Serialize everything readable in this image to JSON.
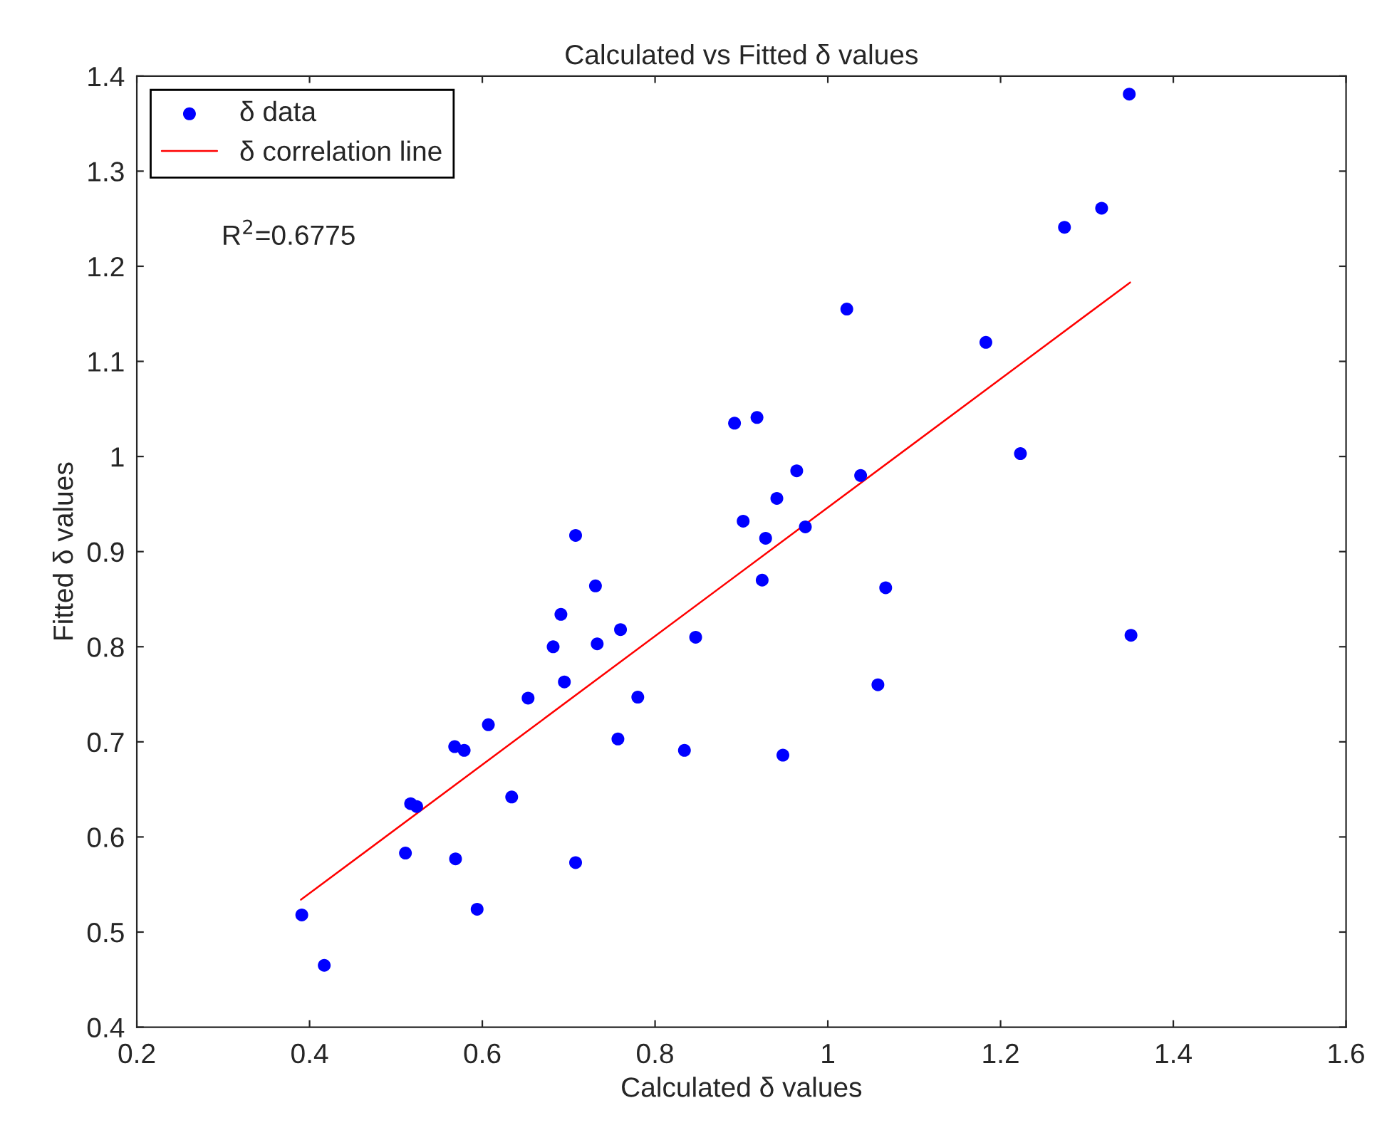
{
  "chart_data": {
    "type": "scatter",
    "title": "Calculated vs Fitted δ values",
    "xlabel": "Calculated δ values",
    "ylabel": "Fitted δ values",
    "annotations": [
      "R$^{2}$=0.6775"
    ],
    "xlim": [
      0.2,
      1.6
    ],
    "xticks": [
      0.2,
      0.4,
      0.6,
      0.8,
      1,
      1.2,
      1.4,
      1.6
    ],
    "ylim": [
      0.4,
      1.4
    ],
    "yticks": [
      0.4,
      0.5,
      0.6,
      0.7,
      0.8,
      0.9,
      1,
      1.1,
      1.2,
      1.3,
      1.4
    ],
    "grid": false,
    "legend": "top left",
    "series": [
      {
        "name": "δ data",
        "marker": "circle",
        "color": "#0000ff",
        "x": [
          0.391,
          0.417,
          0.511,
          0.517,
          0.524,
          0.569,
          0.568,
          0.579,
          0.594,
          0.607,
          0.634,
          0.653,
          0.682,
          0.695,
          0.691,
          0.708,
          0.708,
          0.731,
          0.733,
          0.76,
          0.78,
          0.757,
          0.834,
          0.847,
          0.892,
          0.918,
          0.964,
          0.941,
          0.902,
          0.928,
          0.974,
          0.924,
          0.948,
          1.022,
          1.038,
          1.067,
          1.058,
          1.349,
          1.317,
          1.274,
          1.183,
          1.223,
          1.351
        ],
        "values": [
          0.518,
          0.465,
          0.583,
          0.635,
          0.632,
          0.577,
          0.695,
          0.691,
          0.524,
          0.718,
          0.642,
          0.746,
          0.8,
          0.763,
          0.834,
          0.917,
          0.573,
          0.864,
          0.803,
          0.818,
          0.747,
          0.703,
          0.691,
          0.81,
          1.035,
          1.041,
          0.985,
          0.956,
          0.932,
          0.914,
          0.926,
          0.87,
          0.686,
          1.155,
          0.98,
          0.862,
          0.76,
          1.381,
          1.261,
          1.241,
          1.12,
          1.003,
          0.812
        ]
      },
      {
        "name": "δ correlation line",
        "type": "line",
        "marker": "none",
        "line_style": "solid",
        "color": "#ff0000",
        "x": [
          0.39,
          1.35
        ],
        "values": [
          0.534,
          1.183
        ]
      }
    ]
  }
}
